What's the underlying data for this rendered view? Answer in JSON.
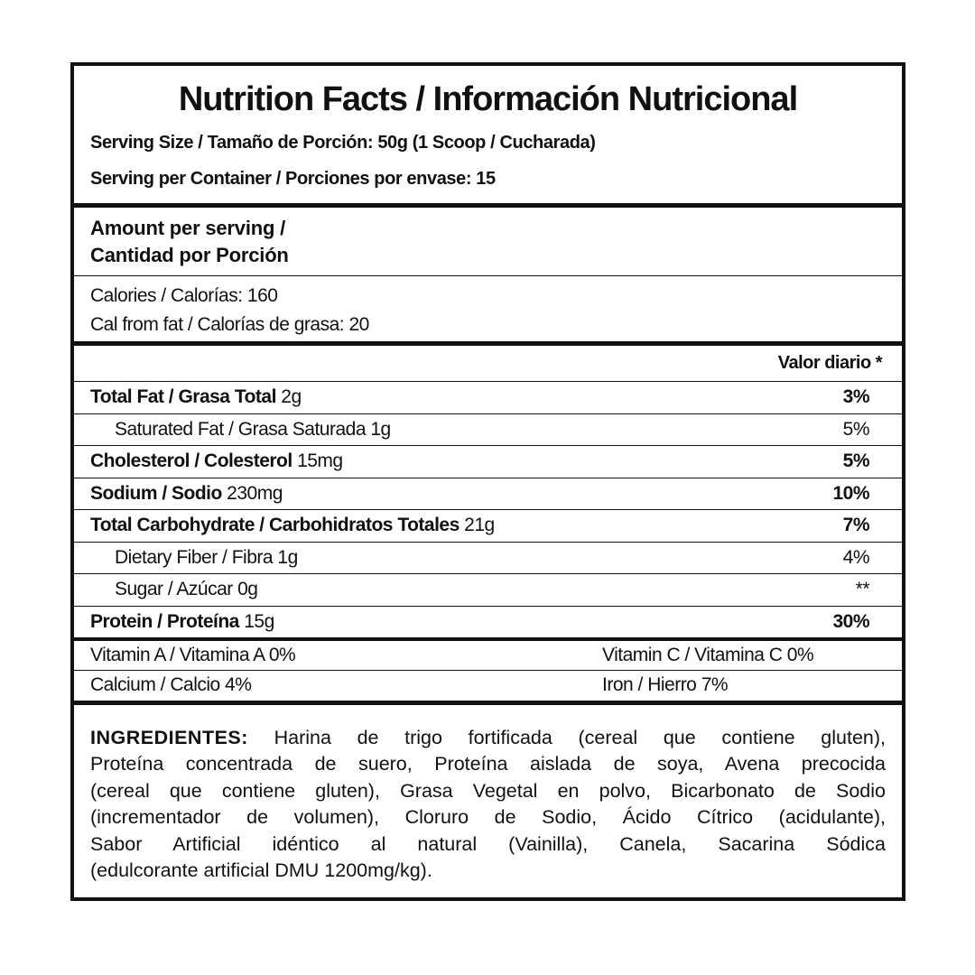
{
  "header": {
    "title": "Nutrition Facts / Información Nutricional",
    "serving_size": "Serving Size / Tamaño de Porción: 50g (1 Scoop / Cucharada)",
    "servings_per_container": "Serving per Container / Porciones por envase: 15"
  },
  "amount": {
    "heading": [
      "Amount per serving /",
      "Cantidad por Porción"
    ]
  },
  "calories": [
    "Calories / Calorías: 160",
    "Cal from fat / Calorías de grasa: 20"
  ],
  "daily_value_heading": "Valor diario *",
  "nutrients": [
    {
      "name": "Total Fat / Grasa Total",
      "amount": "2g",
      "dv": "3%",
      "bold": true
    },
    {
      "name": "Saturated Fat / Grasa Saturada",
      "amount": "1g",
      "dv": "5%",
      "bold": false
    },
    {
      "name": "Cholesterol / Colesterol",
      "amount": "15mg",
      "dv": "5%",
      "bold": true
    },
    {
      "name": "Sodium / Sodio",
      "amount": "230mg",
      "dv": "10%",
      "bold": true
    },
    {
      "name": "Total Carbohydrate / Carbohidratos Totales",
      "amount": "21g",
      "dv": "7%",
      "bold": true
    },
    {
      "name": "Dietary Fiber / Fibra",
      "amount": "1g",
      "dv": "4%",
      "bold": false
    },
    {
      "name": "Sugar / Azúcar",
      "amount": "0g",
      "dv": "**",
      "bold": false
    },
    {
      "name": "Protein / Proteína",
      "amount": "15g",
      "dv": "30%",
      "bold": true
    }
  ],
  "vitamins": [
    [
      "Vitamin A / Vitamina A 0%",
      "Vitamin C / Vitamina C 0%"
    ],
    [
      "Calcium / Calcio 4%",
      "Iron / Hierro 7%"
    ]
  ],
  "ingredients": {
    "label": "INGREDIENTES:",
    "lines": [
      "Harina de trigo fortificada (cereal que contiene gluten),",
      "Proteína concentrada de suero, Proteína aislada de soya, Avena precocida",
      "(cereal que contiene gluten), Grasa Vegetal en polvo, Bicarbonato de Sodio",
      "(incrementador de volumen), Cloruro de Sodio, Ácido Cítrico (acidulante),",
      "Sabor Artificial idéntico al natural (Vainilla), Canela, Sacarina Sódica",
      "(edulcorante artificial DMU 1200mg/kg)."
    ]
  }
}
